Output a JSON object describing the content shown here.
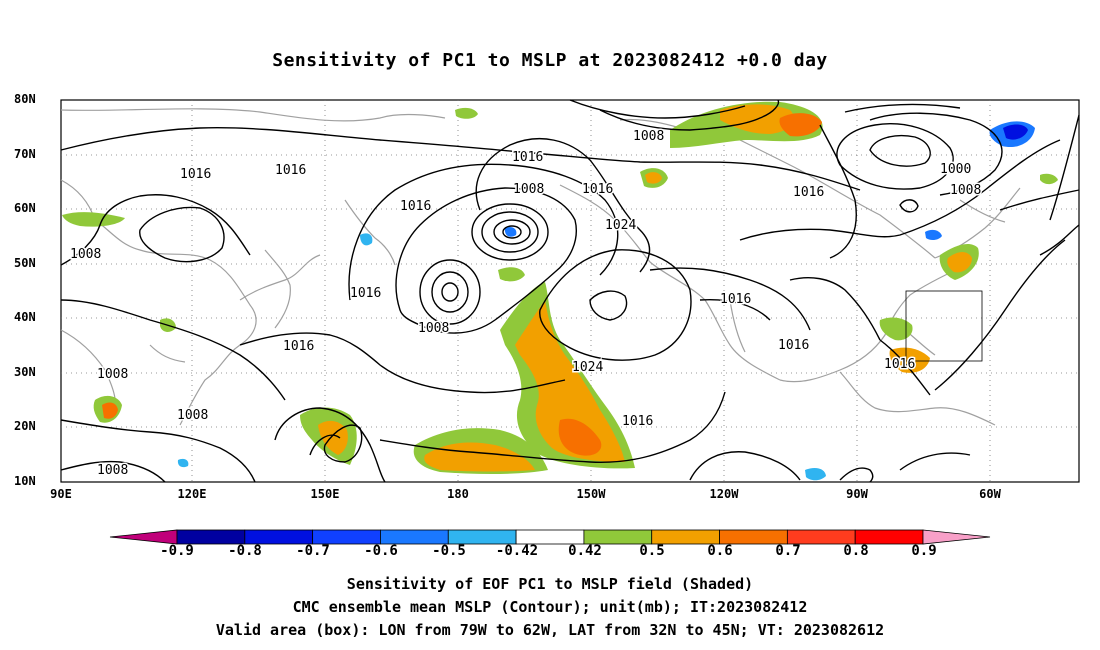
{
  "title": "Sensitivity of PC1 to MSLP at 2023082412 +0.0 day",
  "latitude_labels": [
    "80N",
    "70N",
    "60N",
    "50N",
    "40N",
    "30N",
    "20N",
    "10N"
  ],
  "longitude_labels": [
    "90E",
    "120E",
    "150E",
    "180",
    "150W",
    "120W",
    "90W",
    "60W"
  ],
  "contour_labels": [
    "1016",
    "1016",
    "1008",
    "1008",
    "1016",
    "1008",
    "1016",
    "1016",
    "1024",
    "1016",
    "1008",
    "1016",
    "1016",
    "1016",
    "1008",
    "1024",
    "1016",
    "1008",
    "1008",
    "1016",
    "1008",
    "1000",
    "1008",
    "1016"
  ],
  "colorbar": {
    "labels": [
      "-0.9",
      "-0.8",
      "-0.7",
      "-0.6",
      "-0.5",
      "-0.42",
      "0.42",
      "0.5",
      "0.6",
      "0.7",
      "0.8",
      "0.9"
    ],
    "colors": [
      "#c0007a",
      "#0000a0",
      "#0010e0",
      "#1040ff",
      "#1a78ff",
      "#30b4f0",
      "#ffffff",
      "#90c83a",
      "#f2a000",
      "#f77000",
      "#ff3c1e",
      "#ff0000",
      "#f8a0c8"
    ]
  },
  "valid_box": {
    "lon_from": "79W",
    "lon_to": "62W",
    "lat_from": "32N",
    "lat_to": "45N"
  },
  "captions": {
    "line1": "Sensitivity of EOF PC1 to MSLP field (Shaded)",
    "line2": "CMC ensemble mean MSLP (Contour); unit(mb); IT:2023082412",
    "line3": "Valid area (box): LON from 79W to 62W, LAT from 32N to 45N; VT: 2023082612"
  }
}
